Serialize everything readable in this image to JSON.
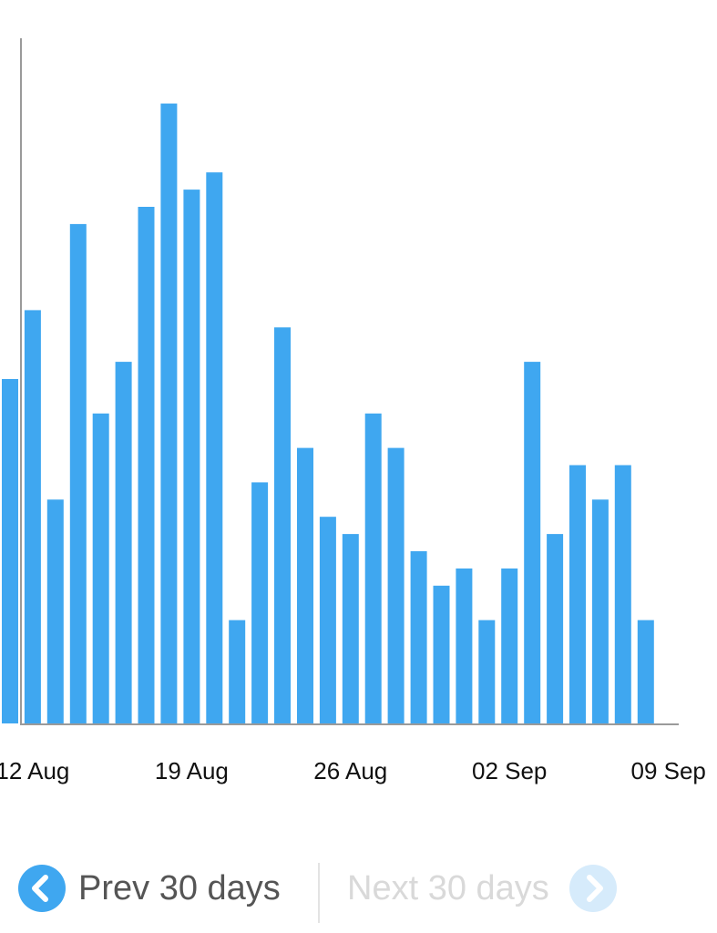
{
  "chart_data": {
    "type": "bar",
    "categories": [
      "11 Aug",
      "12 Aug",
      "13 Aug",
      "14 Aug",
      "15 Aug",
      "16 Aug",
      "17 Aug",
      "18 Aug",
      "19 Aug",
      "20 Aug",
      "21 Aug",
      "22 Aug",
      "23 Aug",
      "24 Aug",
      "25 Aug",
      "26 Aug",
      "27 Aug",
      "28 Aug",
      "29 Aug",
      "30 Aug",
      "31 Aug",
      "01 Sep",
      "02 Sep",
      "03 Sep",
      "04 Sep",
      "05 Sep",
      "06 Sep",
      "07 Sep",
      "08 Sep",
      "09 Sep"
    ],
    "values": [
      20,
      24,
      13,
      29,
      18,
      21,
      30,
      36,
      31,
      32,
      6,
      14,
      23,
      16,
      12,
      11,
      18,
      16,
      10,
      8,
      9,
      6,
      9,
      21,
      11,
      15,
      13,
      15,
      6,
      0
    ],
    "x_tick_labels": [
      "12 Aug",
      "19 Aug",
      "26 Aug",
      "02 Sep",
      "09 Sep"
    ],
    "ylim": [
      0,
      40
    ],
    "grid": false,
    "bar_color": "#3fa7f0",
    "title": "",
    "xlabel": "",
    "ylabel": ""
  },
  "pager": {
    "prev_label": "Prev 30 days",
    "next_label": "Next 30 days",
    "prev_icon": "chevron-left-circle-icon",
    "next_icon": "chevron-right-circle-icon",
    "prev_enabled": true,
    "next_enabled": false,
    "accent_color": "#3fa7f0",
    "disabled_color": "#d6ebfb"
  }
}
